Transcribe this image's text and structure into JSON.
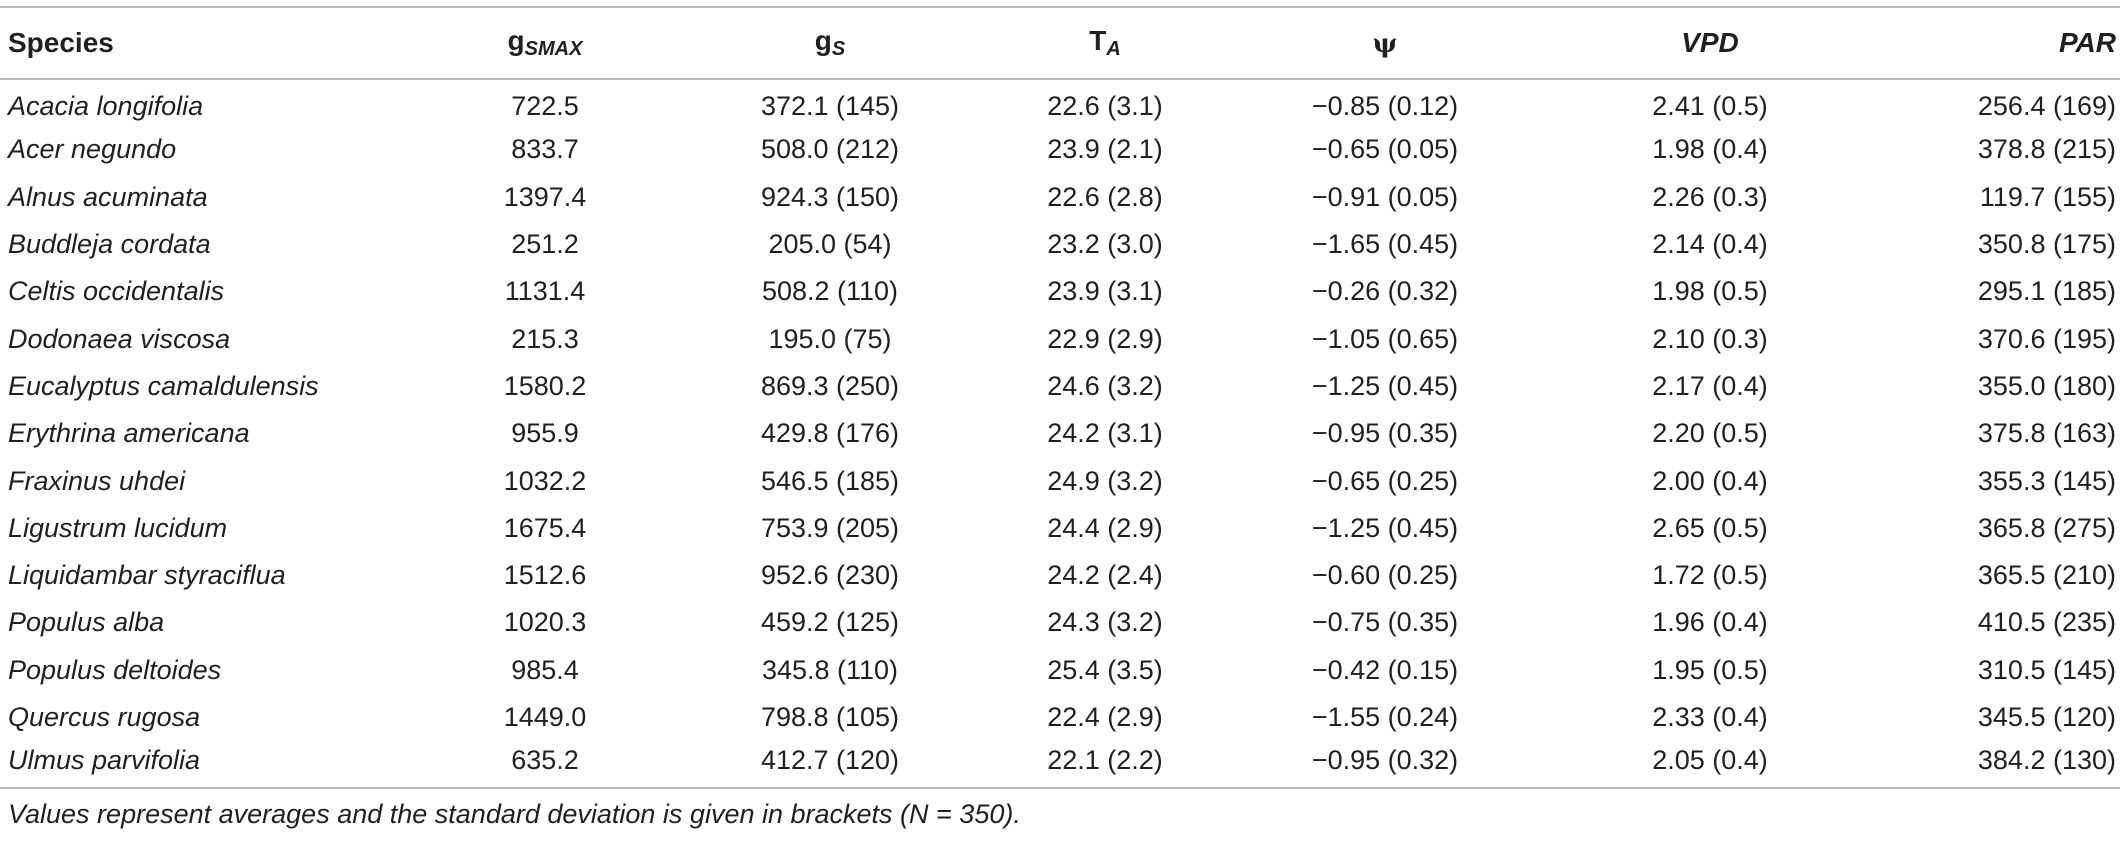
{
  "table": {
    "headers": {
      "species": "Species",
      "gsmax_base": "g",
      "gsmax_sub": "SMAX",
      "gs_base": "g",
      "gs_sub": "S",
      "ta_base": "T",
      "ta_sub": "A",
      "psi": "ψ",
      "vpd": "VPD",
      "par": "PAR"
    },
    "rows": [
      {
        "species": "Acacia longifolia",
        "gsmax": "722.5",
        "gs": "372.1 (145)",
        "ta": "22.6 (3.1)",
        "psi": "−0.85 (0.12)",
        "vpd": "2.41 (0.5)",
        "par": "256.4 (169)"
      },
      {
        "species": "Acer negundo",
        "gsmax": "833.7",
        "gs": "508.0 (212)",
        "ta": "23.9 (2.1)",
        "psi": "−0.65 (0.05)",
        "vpd": "1.98 (0.4)",
        "par": "378.8 (215)"
      },
      {
        "species": "Alnus acuminata",
        "gsmax": "1397.4",
        "gs": "924.3 (150)",
        "ta": "22.6 (2.8)",
        "psi": "−0.91 (0.05)",
        "vpd": "2.26 (0.3)",
        "par": "119.7 (155)"
      },
      {
        "species": "Buddleja cordata",
        "gsmax": "251.2",
        "gs": "205.0 (54)",
        "ta": "23.2 (3.0)",
        "psi": "−1.65 (0.45)",
        "vpd": "2.14 (0.4)",
        "par": "350.8 (175)"
      },
      {
        "species": "Celtis occidentalis",
        "gsmax": "1131.4",
        "gs": "508.2 (110)",
        "ta": "23.9 (3.1)",
        "psi": "−0.26 (0.32)",
        "vpd": "1.98 (0.5)",
        "par": "295.1 (185)"
      },
      {
        "species": "Dodonaea viscosa",
        "gsmax": "215.3",
        "gs": "195.0 (75)",
        "ta": "22.9 (2.9)",
        "psi": "−1.05 (0.65)",
        "vpd": "2.10 (0.3)",
        "par": "370.6 (195)"
      },
      {
        "species": "Eucalyptus camaldulensis",
        "gsmax": "1580.2",
        "gs": "869.3 (250)",
        "ta": "24.6 (3.2)",
        "psi": "−1.25 (0.45)",
        "vpd": "2.17 (0.4)",
        "par": "355.0 (180)"
      },
      {
        "species": "Erythrina americana",
        "gsmax": "955.9",
        "gs": "429.8 (176)",
        "ta": "24.2 (3.1)",
        "psi": "−0.95 (0.35)",
        "vpd": "2.20 (0.5)",
        "par": "375.8 (163)"
      },
      {
        "species": "Fraxinus uhdei",
        "gsmax": "1032.2",
        "gs": "546.5 (185)",
        "ta": "24.9 (3.2)",
        "psi": "−0.65 (0.25)",
        "vpd": "2.00 (0.4)",
        "par": "355.3 (145)"
      },
      {
        "species": "Ligustrum lucidum",
        "gsmax": "1675.4",
        "gs": "753.9 (205)",
        "ta": "24.4 (2.9)",
        "psi": "−1.25 (0.45)",
        "vpd": "2.65 (0.5)",
        "par": "365.8 (275)"
      },
      {
        "species": "Liquidambar styraciflua",
        "gsmax": "1512.6",
        "gs": "952.6 (230)",
        "ta": "24.2 (2.4)",
        "psi": "−0.60 (0.25)",
        "vpd": "1.72 (0.5)",
        "par": "365.5 (210)"
      },
      {
        "species": "Populus alba",
        "gsmax": "1020.3",
        "gs": "459.2 (125)",
        "ta": "24.3 (3.2)",
        "psi": "−0.75 (0.35)",
        "vpd": "1.96 (0.4)",
        "par": "410.5 (235)"
      },
      {
        "species": "Populus deltoides",
        "gsmax": "985.4",
        "gs": "345.8 (110)",
        "ta": "25.4 (3.5)",
        "psi": "−0.42 (0.15)",
        "vpd": "1.95 (0.5)",
        "par": "310.5 (145)"
      },
      {
        "species": "Quercus rugosa",
        "gsmax": "1449.0",
        "gs": "798.8 (105)",
        "ta": "22.4 (2.9)",
        "psi": "−1.55 (0.24)",
        "vpd": "2.33 (0.4)",
        "par": "345.5 (120)"
      },
      {
        "species": "Ulmus parvifolia",
        "gsmax": "635.2",
        "gs": "412.7 (120)",
        "ta": "22.1 (2.2)",
        "psi": "−0.95 (0.32)",
        "vpd": "2.05 (0.4)",
        "par": "384.2 (130)"
      }
    ],
    "footnote": "Values represent averages and the standard deviation is given in brackets (N = 350)."
  }
}
